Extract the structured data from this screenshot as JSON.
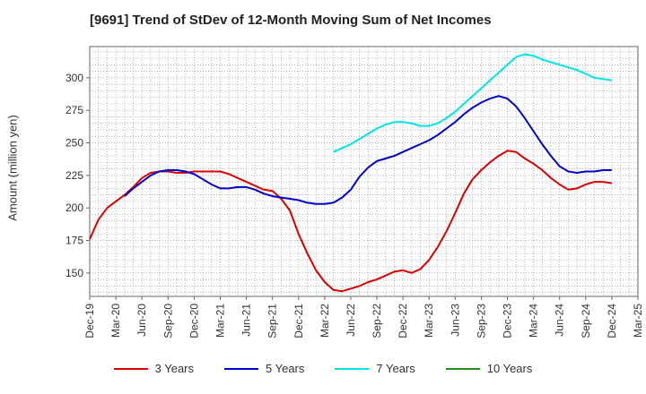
{
  "chart_data": {
    "type": "line",
    "title": "[9691]  Trend of StDev of 12-Month Moving Sum of Net Incomes",
    "ylabel": "Amount (million yen)",
    "xlabel": "",
    "ylim": [
      132,
      324
    ],
    "yticks": [
      150,
      175,
      200,
      225,
      250,
      275,
      300
    ],
    "grid": true,
    "legend_position": "bottom",
    "x_tick_labels": [
      "Dec-19",
      "Mar-20",
      "Jun-20",
      "Sep-20",
      "Dec-20",
      "Mar-21",
      "Jun-21",
      "Sep-21",
      "Dec-21",
      "Mar-22",
      "Jun-22",
      "Sep-22",
      "Dec-22",
      "Mar-23",
      "Jun-23",
      "Sep-23",
      "Dec-23",
      "Mar-24",
      "Jun-24",
      "Sep-24",
      "Dec-24",
      "Mar-25"
    ],
    "series": [
      {
        "name": "3 Years",
        "color": "#dd0000",
        "values": [
          176,
          191,
          200,
          205,
          210,
          216,
          223,
          227,
          228,
          228,
          227,
          227,
          228,
          228,
          228,
          228,
          226,
          223,
          220,
          217,
          214,
          213,
          207,
          198,
          180,
          165,
          152,
          143,
          137,
          136,
          138,
          140,
          143,
          145,
          148,
          151,
          152,
          150,
          153,
          160,
          170,
          182,
          196,
          211,
          222,
          229,
          235,
          240,
          244,
          243,
          238,
          234,
          229,
          223,
          218,
          214,
          215,
          218,
          220,
          220,
          219
        ],
        "values_start_index": 0
      },
      {
        "name": "5 Years",
        "color": "#0000cc",
        "values": [
          209,
          215,
          220,
          225,
          228,
          229,
          229,
          228,
          226,
          222,
          218,
          215,
          215,
          216,
          216,
          214,
          211,
          209,
          208,
          207,
          206,
          204,
          203,
          203,
          204,
          208,
          214,
          224,
          231,
          236,
          238,
          240,
          243,
          246,
          249,
          252,
          256,
          261,
          266,
          272,
          277,
          281,
          284,
          286,
          284,
          278,
          269,
          259,
          249,
          240,
          232,
          228,
          227,
          228,
          228,
          229,
          229
        ],
        "values_start_index": 4
      },
      {
        "name": "7 Years",
        "color": "#00e5e5",
        "values": [
          243,
          246,
          249,
          253,
          257,
          261,
          264,
          266,
          266,
          265,
          263,
          263,
          265,
          269,
          274,
          280,
          286,
          292,
          298,
          304,
          310,
          316,
          318,
          317,
          314,
          312,
          310,
          308,
          306,
          303,
          300,
          299,
          298
        ],
        "values_start_index": 28
      },
      {
        "name": "10 Years",
        "color": "#228b22",
        "values": [],
        "values_start_index": 0
      }
    ]
  }
}
